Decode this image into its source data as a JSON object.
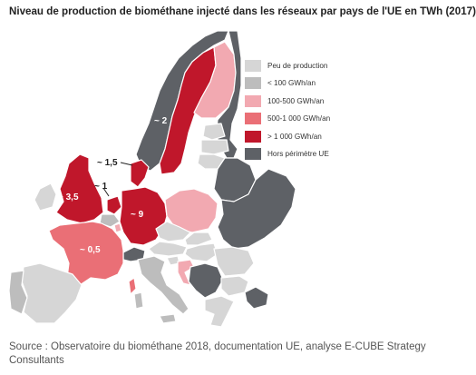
{
  "title": "Niveau de production de biométhane injecté dans les réseaux par pays de l'UE en TWh (2017)",
  "colors": {
    "peu": "#d6d6d6",
    "lt100": "#bdbdbd",
    "c100_500": "#f2a9b1",
    "c500_1000": "#ea6f76",
    "gt1000": "#c0172b",
    "hors": "#5e6166",
    "sea": "#ffffff",
    "border": "#ffffff"
  },
  "legend": [
    {
      "label": "Peu de production",
      "color_key": "peu"
    },
    {
      "label": "< 100 GWh/an",
      "color_key": "lt100"
    },
    {
      "label": "100-500 GWh/an",
      "color_key": "c100_500"
    },
    {
      "label": "500-1 000 GWh/an",
      "color_key": "c500_1000"
    },
    {
      "label": "> 1 000 GWh/an",
      "color_key": "gt1000"
    },
    {
      "label": "Hors périmètre UE",
      "color_key": "hors"
    }
  ],
  "map_labels": {
    "uk": "~ 3,5",
    "germany": "~ 9",
    "france": "~ 0,5",
    "sweden": "~ 2",
    "denmark": "~ 1,5",
    "netherlands": "~ 1"
  },
  "source": "Source : Observatoire du biométhane 2018, documentation UE, analyse E-CUBE Strategy Consultants"
}
